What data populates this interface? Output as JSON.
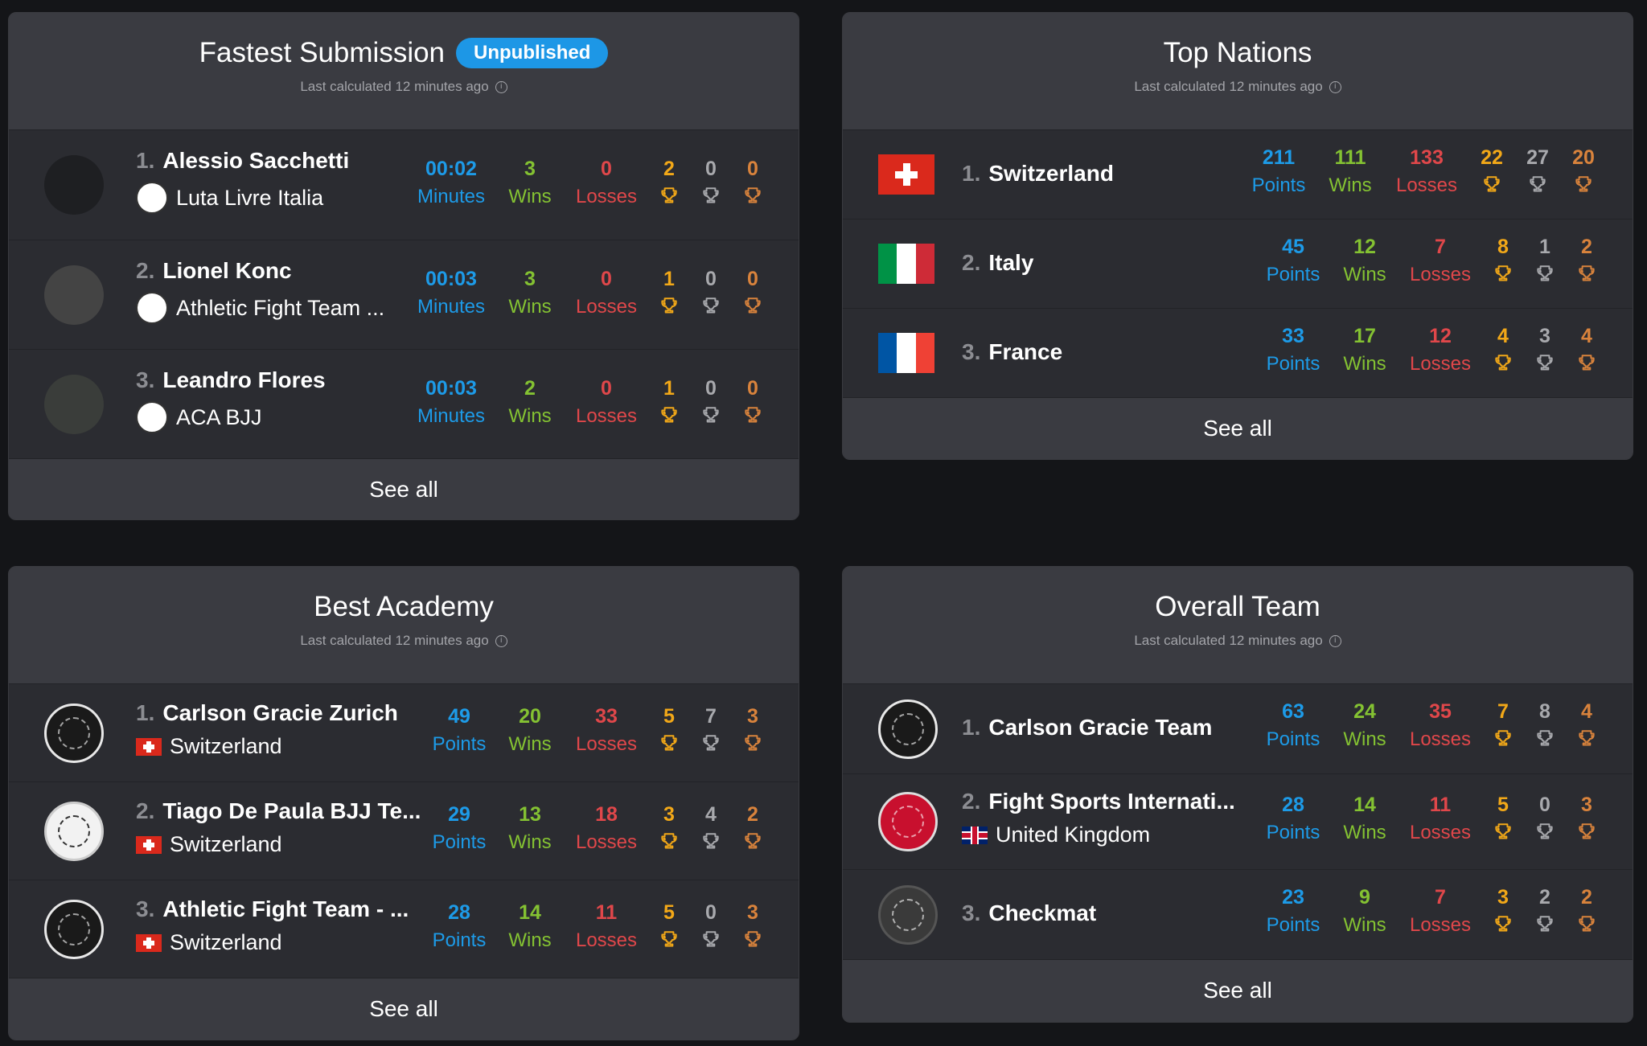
{
  "common": {
    "last_calculated": "Last calculated 12 minutes ago",
    "see_all": "See all",
    "label_minutes": "Minutes",
    "label_points": "Points",
    "label_wins": "Wins",
    "label_losses": "Losses",
    "info_icon": "info-icon"
  },
  "colors": {
    "points": "#1d9be8",
    "wins": "#84c232",
    "losses": "#e0474a",
    "gold": "#f2a818",
    "silver": "#a8a9ad",
    "bronze": "#d9833c",
    "badge": "#1d97e6"
  },
  "fastest": {
    "title": "Fastest Submission",
    "badge": "Unpublished",
    "rows": [
      {
        "rank": "1.",
        "name": "Alessio Sacchetti",
        "team": "Luta Livre Italia",
        "time": "00:02",
        "wins": "3",
        "losses": "0",
        "gold": "2",
        "silver": "0",
        "bronze": "0"
      },
      {
        "rank": "2.",
        "name": "Lionel Konc",
        "team": "Athletic Fight Team ...",
        "time": "00:03",
        "wins": "3",
        "losses": "0",
        "gold": "1",
        "silver": "0",
        "bronze": "0"
      },
      {
        "rank": "3.",
        "name": "Leandro Flores",
        "team": "ACA BJJ",
        "time": "00:03",
        "wins": "2",
        "losses": "0",
        "gold": "1",
        "silver": "0",
        "bronze": "0"
      }
    ]
  },
  "nations": {
    "title": "Top Nations",
    "rows": [
      {
        "rank": "1.",
        "name": "Switzerland",
        "points": "211",
        "wins": "111",
        "losses": "133",
        "gold": "22",
        "silver": "27",
        "bronze": "20"
      },
      {
        "rank": "2.",
        "name": "Italy",
        "points": "45",
        "wins": "12",
        "losses": "7",
        "gold": "8",
        "silver": "1",
        "bronze": "2"
      },
      {
        "rank": "3.",
        "name": "France",
        "points": "33",
        "wins": "17",
        "losses": "12",
        "gold": "4",
        "silver": "3",
        "bronze": "4"
      }
    ]
  },
  "academy": {
    "title": "Best Academy",
    "rows": [
      {
        "rank": "1.",
        "name": "Carlson Gracie Zurich",
        "country": "Switzerland",
        "points": "49",
        "wins": "20",
        "losses": "33",
        "gold": "5",
        "silver": "7",
        "bronze": "3"
      },
      {
        "rank": "2.",
        "name": "Tiago De Paula BJJ Te...",
        "country": "Switzerland",
        "points": "29",
        "wins": "13",
        "losses": "18",
        "gold": "3",
        "silver": "4",
        "bronze": "2"
      },
      {
        "rank": "3.",
        "name": "Athletic Fight Team - ...",
        "country": "Switzerland",
        "points": "28",
        "wins": "14",
        "losses": "11",
        "gold": "5",
        "silver": "0",
        "bronze": "3"
      }
    ]
  },
  "overall": {
    "title": "Overall Team",
    "rows": [
      {
        "rank": "1.",
        "name": "Carlson Gracie Team",
        "points": "63",
        "wins": "24",
        "losses": "35",
        "gold": "7",
        "silver": "8",
        "bronze": "4"
      },
      {
        "rank": "2.",
        "name": "Fight Sports Internati...",
        "country": "United Kingdom",
        "points": "28",
        "wins": "14",
        "losses": "11",
        "gold": "5",
        "silver": "0",
        "bronze": "3"
      },
      {
        "rank": "3.",
        "name": "Checkmat",
        "points": "23",
        "wins": "9",
        "losses": "7",
        "gold": "3",
        "silver": "2",
        "bronze": "2"
      }
    ]
  }
}
